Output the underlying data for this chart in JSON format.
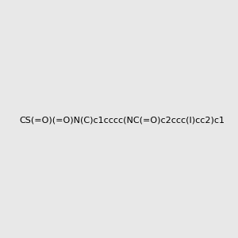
{
  "smiles": "CS(=O)(=O)N(C)c1cccc(NC(=O)c2ccc(I)cc2)c1",
  "image_size": 300,
  "background_color": "#e8e8e8",
  "bond_color": "#000000",
  "atom_colors": {
    "N": "#0000ff",
    "O": "#ff0000",
    "S": "#cccc00",
    "I": "#cc00cc"
  },
  "title": ""
}
